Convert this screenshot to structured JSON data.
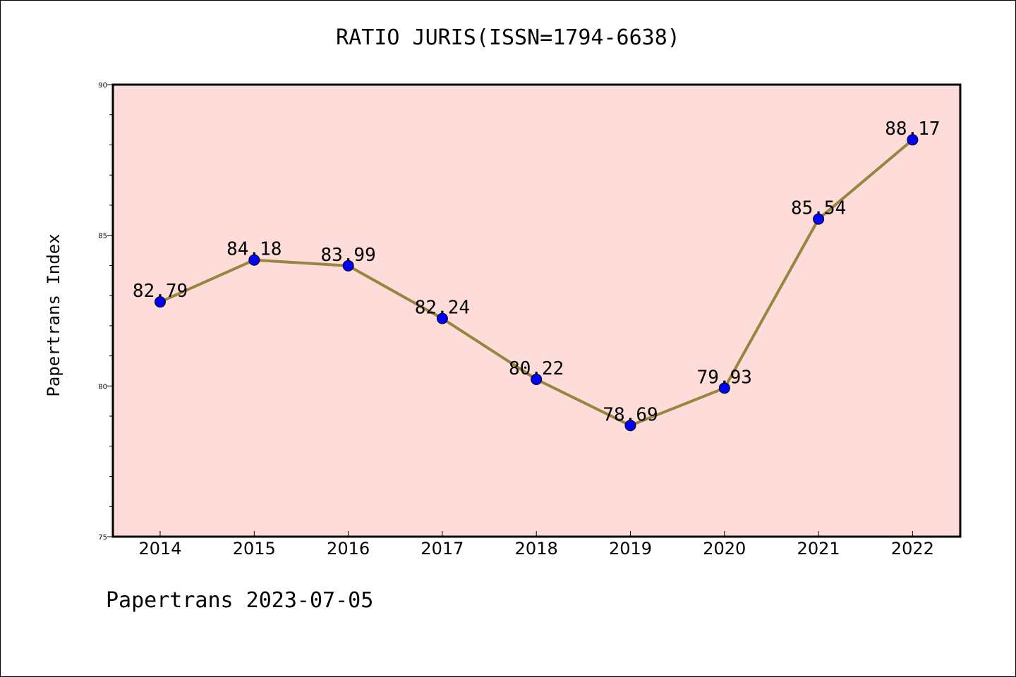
{
  "chart_data": {
    "type": "line",
    "title": "RATIO JURIS(ISSN=1794-6638)",
    "ylabel": "Papertrans Index",
    "xlabel": "",
    "categories": [
      "2014",
      "2015",
      "2016",
      "2017",
      "2018",
      "2019",
      "2020",
      "2021",
      "2022"
    ],
    "values": [
      82.79,
      84.18,
      83.99,
      82.24,
      80.22,
      78.69,
      79.93,
      85.54,
      88.17
    ],
    "value_labels": [
      "82.79",
      "84.18",
      "83.99",
      "82.24",
      "80.22",
      "78.69",
      "79.93",
      "85.54",
      "88.17"
    ],
    "ylim": [
      75,
      90
    ],
    "yticks": [
      "75",
      "80",
      "85",
      "90"
    ],
    "grid": false,
    "colors": {
      "plot_background": "#fddcd9",
      "line": "#9a8540",
      "marker": "#0000ff"
    },
    "footer": "Papertrans 2023-07-05"
  }
}
